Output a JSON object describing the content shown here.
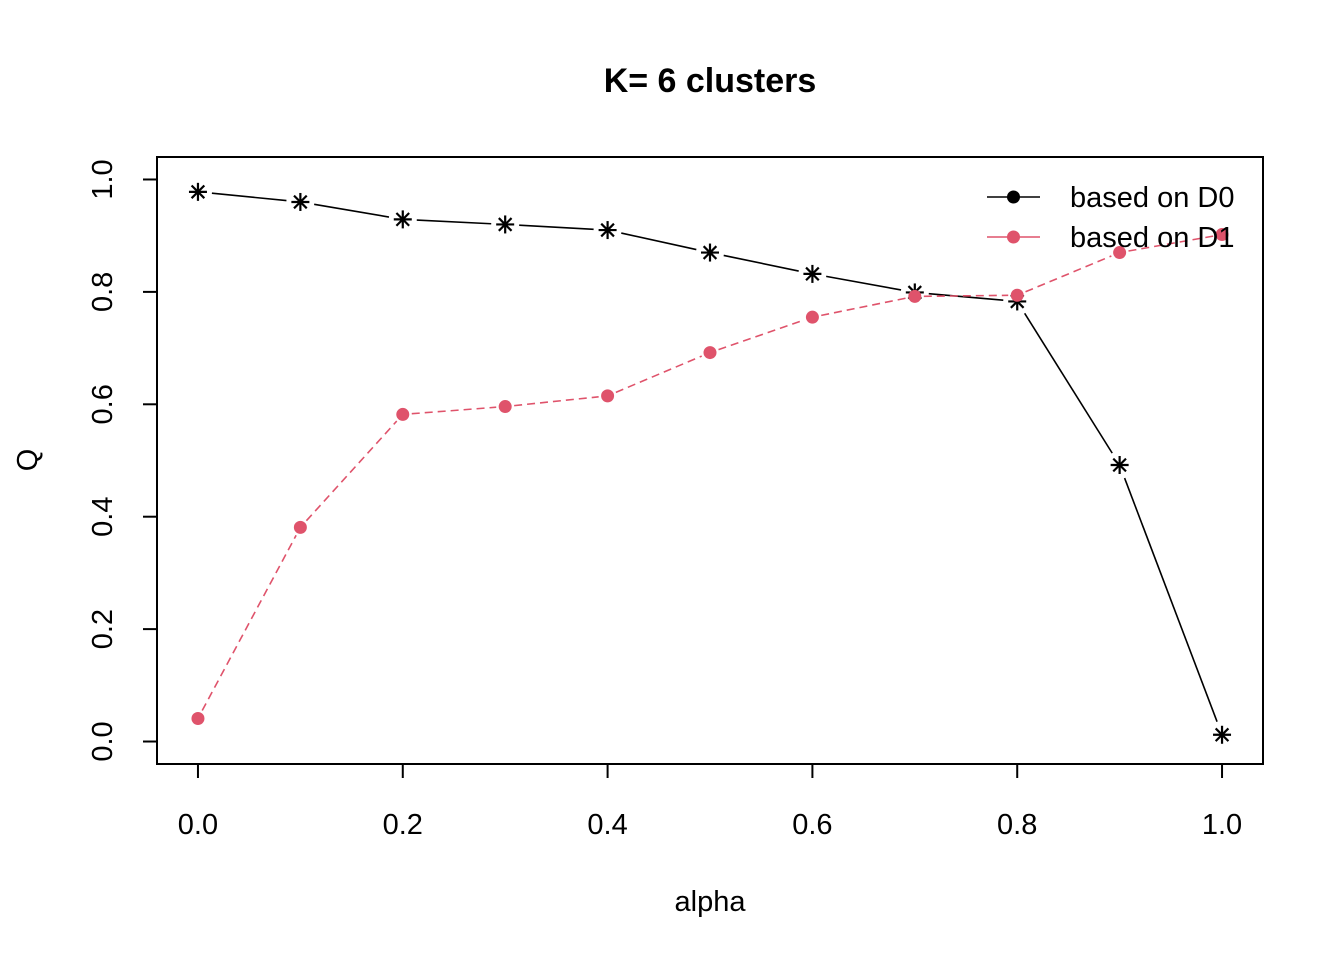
{
  "chart_data": {
    "type": "line",
    "title": "K= 6 clusters",
    "xlabel": "alpha",
    "ylabel": "Q",
    "xlim": [
      -0.04,
      1.04
    ],
    "ylim": [
      -0.04,
      1.04
    ],
    "x_ticks": [
      0.0,
      0.2,
      0.4,
      0.6,
      0.8,
      1.0
    ],
    "x_tick_labels": [
      "0.0",
      "0.2",
      "0.4",
      "0.6",
      "0.8",
      "1.0"
    ],
    "y_ticks": [
      0.0,
      0.2,
      0.4,
      0.6,
      0.8,
      1.0
    ],
    "y_tick_labels": [
      "0.0",
      "0.2",
      "0.4",
      "0.6",
      "0.8",
      "1.0"
    ],
    "x": [
      0.0,
      0.1,
      0.2,
      0.3,
      0.4,
      0.5,
      0.6,
      0.7,
      0.8,
      0.9,
      1.0
    ],
    "series": [
      {
        "name": "based on D0",
        "color": "#000000",
        "line_style": "solid",
        "point_style": "asterisk",
        "legend_point_style": "circle",
        "values": [
          0.978,
          0.96,
          0.929,
          0.92,
          0.91,
          0.87,
          0.832,
          0.799,
          0.783,
          0.492,
          0.012
        ]
      },
      {
        "name": "based on D1",
        "color": "#DF536B",
        "line_style": "dashed",
        "point_style": "circle",
        "legend_point_style": "circle",
        "values": [
          0.041,
          0.381,
          0.582,
          0.596,
          0.615,
          0.692,
          0.755,
          0.792,
          0.794,
          0.87,
          0.902
        ]
      }
    ],
    "legend_position": "top-right",
    "grid": false
  }
}
